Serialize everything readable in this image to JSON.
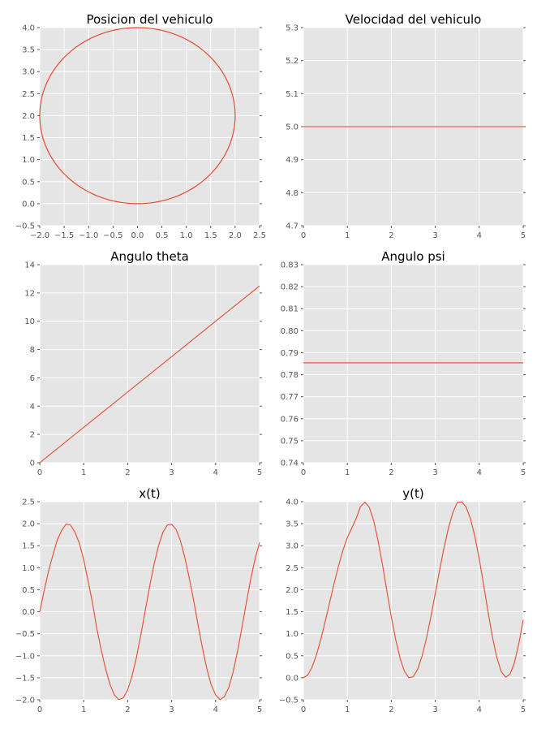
{
  "chart_data": [
    {
      "type": "line",
      "title": "Posicion del vehiculo",
      "xlim": [
        -2.0,
        2.5
      ],
      "ylim": [
        -0.5,
        4.0
      ],
      "xticks": [
        "−2.0",
        "−1.5",
        "−1.0",
        "−0.5",
        "0.0",
        "0.5",
        "1.0",
        "1.5",
        "2.0",
        "2.5"
      ],
      "xtick_values": [
        -2.0,
        -1.5,
        -1.0,
        -0.5,
        0.0,
        0.5,
        1.0,
        1.5,
        2.0,
        2.5
      ],
      "yticks": [
        "−0.5",
        "0.0",
        "0.5",
        "1.0",
        "1.5",
        "2.0",
        "2.5",
        "3.0",
        "3.5",
        "4.0"
      ],
      "ytick_values": [
        -0.5,
        0.0,
        0.5,
        1.0,
        1.5,
        2.0,
        2.5,
        3.0,
        3.5,
        4.0
      ],
      "curve": "circle",
      "center": [
        0.0,
        2.0
      ],
      "radius": 2.0,
      "xlabel": "",
      "ylabel": ""
    },
    {
      "type": "line",
      "title": "Velocidad del vehiculo",
      "xlim": [
        0,
        5
      ],
      "ylim": [
        4.7,
        5.3
      ],
      "xticks": [
        "0",
        "1",
        "2",
        "3",
        "4",
        "5"
      ],
      "xtick_values": [
        0,
        1,
        2,
        3,
        4,
        5
      ],
      "yticks": [
        "4.7",
        "4.8",
        "4.9",
        "5.0",
        "5.1",
        "5.2",
        "5.3"
      ],
      "ytick_values": [
        4.7,
        4.8,
        4.9,
        5.0,
        5.1,
        5.2,
        5.3
      ],
      "x": [
        0,
        5
      ],
      "y": [
        5.0,
        5.0
      ],
      "xlabel": "",
      "ylabel": ""
    },
    {
      "type": "line",
      "title": "Angulo theta",
      "xlim": [
        0,
        5
      ],
      "ylim": [
        0,
        14
      ],
      "xticks": [
        "0",
        "1",
        "2",
        "3",
        "4",
        "5"
      ],
      "xtick_values": [
        0,
        1,
        2,
        3,
        4,
        5
      ],
      "yticks": [
        "0",
        "2",
        "4",
        "6",
        "8",
        "10",
        "12",
        "14"
      ],
      "ytick_values": [
        0,
        2,
        4,
        6,
        8,
        10,
        12,
        14
      ],
      "x": [
        0,
        5
      ],
      "y": [
        0,
        12.5
      ],
      "xlabel": "",
      "ylabel": ""
    },
    {
      "type": "line",
      "title": "Angulo psi",
      "xlim": [
        0,
        5
      ],
      "ylim": [
        0.74,
        0.83
      ],
      "xticks": [
        "0",
        "1",
        "2",
        "3",
        "4",
        "5"
      ],
      "xtick_values": [
        0,
        1,
        2,
        3,
        4,
        5
      ],
      "yticks": [
        "0.74",
        "0.75",
        "0.76",
        "0.77",
        "0.78",
        "0.79",
        "0.80",
        "0.81",
        "0.82",
        "0.83"
      ],
      "ytick_values": [
        0.74,
        0.75,
        0.76,
        0.77,
        0.78,
        0.79,
        0.8,
        0.81,
        0.82,
        0.83
      ],
      "x": [
        0,
        5
      ],
      "y": [
        0.7854,
        0.7854
      ],
      "xlabel": "",
      "ylabel": ""
    },
    {
      "type": "line",
      "title": "x(t)",
      "xlim": [
        0,
        5
      ],
      "ylim": [
        -2.0,
        2.5
      ],
      "xticks": [
        "0",
        "1",
        "2",
        "3",
        "4",
        "5"
      ],
      "xtick_values": [
        0,
        1,
        2,
        3,
        4,
        5
      ],
      "yticks": [
        "−2.0",
        "−1.5",
        "−1.0",
        "−0.5",
        "0.0",
        "0.5",
        "1.0",
        "1.5",
        "2.0",
        "2.5"
      ],
      "ytick_values": [
        -2.0,
        -1.5,
        -1.0,
        -0.5,
        0.0,
        0.5,
        1.0,
        1.5,
        2.0,
        2.5
      ],
      "x": [
        0,
        0.1,
        0.2,
        0.3,
        0.4,
        0.5,
        0.6,
        0.7,
        0.8,
        0.9,
        1.0,
        1.1,
        1.2,
        1.3,
        1.4,
        1.5,
        1.6,
        1.7,
        1.8,
        1.9,
        2.0,
        2.1,
        2.2,
        2.3,
        2.4,
        2.5,
        2.6,
        2.7,
        2.8,
        2.9,
        3.0,
        3.1,
        3.2,
        3.3,
        3.4,
        3.5,
        3.6,
        3.7,
        3.8,
        3.9,
        4.0,
        4.1,
        4.2,
        4.3,
        4.4,
        4.5,
        4.6,
        4.7,
        4.8,
        4.9,
        5.0
      ],
      "y": [
        0.0,
        0.479,
        0.921,
        1.29,
        1.637,
        1.848,
        1.991,
        1.97,
        1.808,
        1.562,
        1.176,
        0.702,
        0.199,
        -0.396,
        -0.88,
        -1.307,
        -1.658,
        -1.895,
        -1.997,
        -1.957,
        -1.774,
        -1.459,
        -1.033,
        -0.525,
        0.029,
        0.577,
        1.077,
        1.495,
        1.8,
        1.969,
        1.988,
        1.872,
        1.612,
        1.231,
        0.766,
        0.259,
        -0.295,
        -0.822,
        -1.294,
        -1.66,
        -1.891,
        -1.998,
        -1.928,
        -1.72,
        -1.361,
        -0.893,
        -0.353,
        0.213,
        0.748,
        1.212,
        1.576
      ],
      "xlabel": "",
      "ylabel": ""
    },
    {
      "type": "line",
      "title": "y(t)",
      "xlim": [
        0,
        5
      ],
      "ylim": [
        -0.5,
        4.0
      ],
      "xticks": [
        "0",
        "1",
        "2",
        "3",
        "4",
        "5"
      ],
      "xtick_values": [
        0,
        1,
        2,
        3,
        4,
        5
      ],
      "yticks": [
        "−0.5",
        "0.0",
        "0.5",
        "1.0",
        "1.5",
        "2.0",
        "2.5",
        "3.0",
        "3.5",
        "4.0"
      ],
      "ytick_values": [
        -0.5,
        0.0,
        0.5,
        1.0,
        1.5,
        2.0,
        2.5,
        3.0,
        3.5,
        4.0
      ],
      "x": [
        0,
        0.1,
        0.2,
        0.3,
        0.4,
        0.5,
        0.6,
        0.7,
        0.8,
        0.9,
        1.0,
        1.1,
        1.2,
        1.3,
        1.4,
        1.5,
        1.6,
        1.7,
        1.8,
        1.9,
        2.0,
        2.1,
        2.2,
        2.3,
        2.4,
        2.5,
        2.6,
        2.7,
        2.8,
        2.9,
        3.0,
        3.1,
        3.2,
        3.3,
        3.4,
        3.5,
        3.6,
        3.7,
        3.8,
        3.9,
        4.0,
        4.1,
        4.2,
        4.3,
        4.4,
        4.5,
        4.6,
        4.7,
        4.8,
        4.9,
        5.0
      ],
      "y": [
        0.0,
        0.062,
        0.245,
        0.53,
        0.887,
        1.293,
        1.721,
        2.146,
        2.545,
        2.898,
        3.188,
        3.4,
        3.617,
        3.892,
        3.991,
        3.872,
        3.564,
        3.105,
        2.567,
        1.964,
        1.385,
        0.867,
        0.44,
        0.142,
        0.002,
        0.025,
        0.195,
        0.494,
        0.9,
        1.385,
        1.915,
        2.451,
        2.96,
        3.404,
        3.754,
        3.983,
        3.998,
        3.882,
        3.615,
        3.216,
        2.703,
        2.108,
        1.497,
        0.926,
        0.459,
        0.142,
        0.013,
        0.083,
        0.343,
        0.774,
        1.318
      ],
      "xlabel": "",
      "ylabel": ""
    }
  ]
}
